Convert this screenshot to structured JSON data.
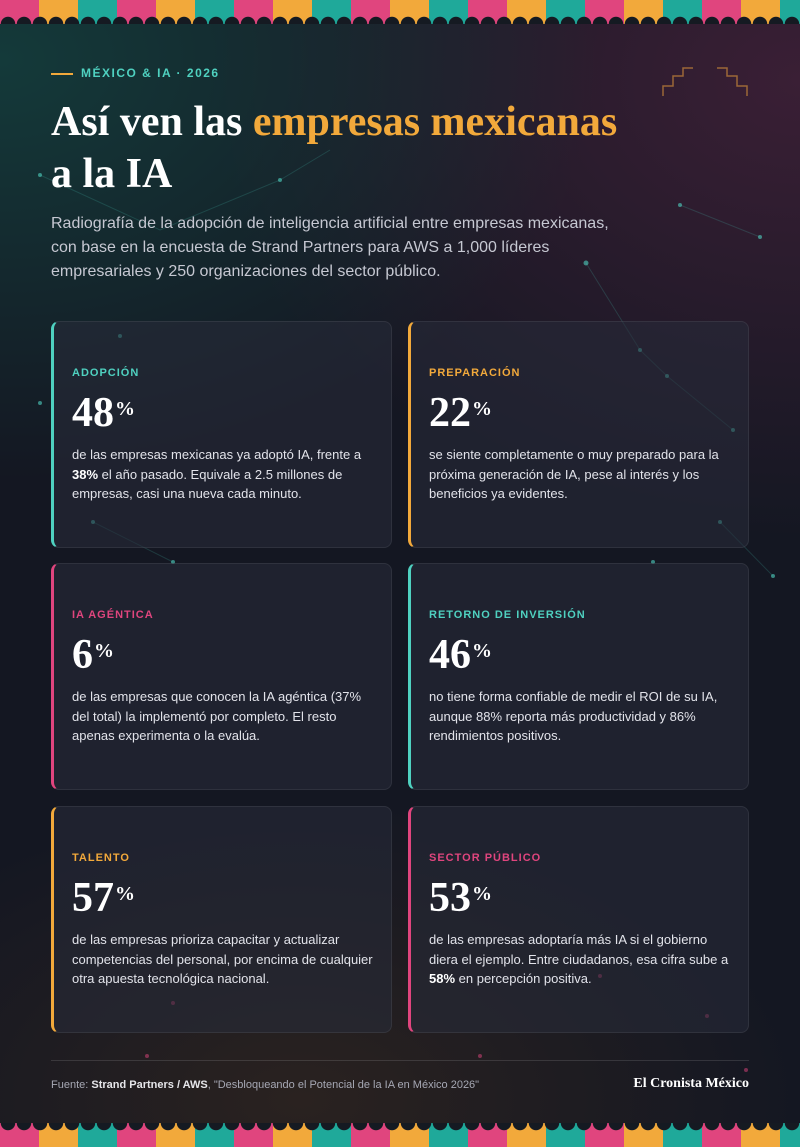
{
  "header": {
    "kicker": "MÉXICO & IA · 2026",
    "title_before": "Así ven las ",
    "title_highlight": "empresas mexicanas",
    "title_after": "a la IA",
    "subtitle": "Radiografía de la adopción de inteligencia artificial entre empresas mexicanas, con base en la encuesta de Strand Partners para AWS a 1,000 líderes empresariales y 250 organizaciones del sector público."
  },
  "cards": [
    {
      "label": "ADOPCIÓN",
      "accent": "#4fd1c0",
      "value": 48,
      "unit": "%",
      "description": [
        {
          "text": "de las empresas mexicanas ya adoptó IA, frente a "
        },
        {
          "text": "38%",
          "bold": true
        },
        {
          "text": " el año pasado. Equivale a 2.5 millones de empresas, casi una nueva cada minuto."
        }
      ]
    },
    {
      "label": "PREPARACIÓN",
      "accent": "#f2a93b",
      "value": 22,
      "unit": "%",
      "description": [
        {
          "text": "se siente completamente o muy preparado para la próxima generación de IA, pese al interés y los beneficios ya evidentes."
        }
      ]
    },
    {
      "label": "IA AGÉNTICA",
      "accent": "#e0457e",
      "value": 6,
      "unit": "%",
      "description": [
        {
          "text": "de las empresas que conocen la IA agéntica (37% del total) la implementó por completo. El resto apenas experimenta o la evalúa."
        }
      ]
    },
    {
      "label": "RETORNO DE INVERSIÓN",
      "accent": "#4fd1c0",
      "value": 46,
      "unit": "%",
      "description": [
        {
          "text": "no tiene forma confiable de medir el ROI de su IA, aunque 88% reporta más productividad y 86% rendimientos positivos."
        }
      ]
    },
    {
      "label": "TALENTO",
      "accent": "#f2a93b",
      "value": 57,
      "unit": "%",
      "description": [
        {
          "text": "de las empresas prioriza capacitar y actualizar competencias del personal, por encima de cualquier otra apuesta tecnológica nacional."
        }
      ]
    },
    {
      "label": "SECTOR PÚBLICO",
      "accent": "#e0457e",
      "value": 53,
      "unit": "%",
      "description": [
        {
          "text": "de las empresas adoptaría más IA si el gobierno diera el ejemplo. Entre ciudadanos, esa cifra sube a "
        },
        {
          "text": "58%",
          "bold": true
        },
        {
          "text": " en percepción positiva."
        }
      ]
    }
  ],
  "footer": {
    "source_prefix": "Fuente: ",
    "source_bold": "Strand Partners / AWS",
    "source_rest": ", \"Desbloqueando el Potencial de la IA en México 2026\"",
    "brand": "El Cronista México"
  }
}
